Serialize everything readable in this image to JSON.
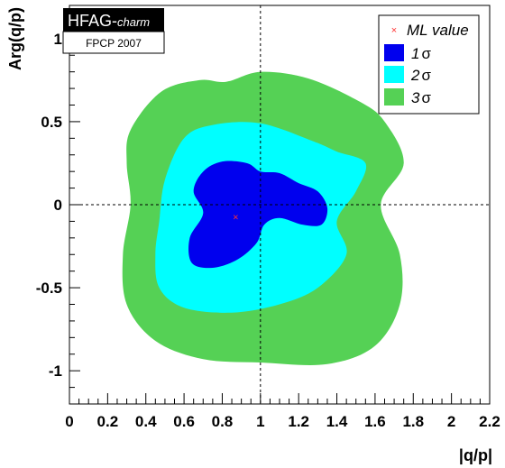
{
  "tag": {
    "main": "HFAG-",
    "main_italic": "charm",
    "sub": "FPCP 2007"
  },
  "legend": {
    "ml": "ML value",
    "s1_num": "1",
    "s2_num": "2",
    "s3_num": "3",
    "sigma": "σ"
  },
  "colors": {
    "one_sigma": "#0000ee",
    "two_sigma": "#00ffff",
    "three_sigma": "#55d155",
    "ml_marker": "#ff3333"
  },
  "chart_data": {
    "type": "contour",
    "xlabel": "|q/p|",
    "ylabel": "Arg(q/p)",
    "xlim": [
      0,
      2.2
    ],
    "ylim": [
      -1.2,
      1.2
    ],
    "x_ticks": [
      "0",
      "0.2",
      "0.4",
      "0.6",
      "0.8",
      "1",
      "1.2",
      "1.4",
      "1.6",
      "1.8",
      "2",
      "2.2"
    ],
    "y_ticks": [
      "-1",
      "-0.5",
      "0",
      "0.5",
      "1"
    ],
    "reference_lines": {
      "x": 1.0,
      "y": 0.0
    },
    "ml_value": {
      "x": 0.87,
      "y": -0.08
    },
    "contours": [
      {
        "name": "3σ",
        "points": [
          [
            0.32,
            0.45
          ],
          [
            0.48,
            0.68
          ],
          [
            0.68,
            0.75
          ],
          [
            0.82,
            0.74
          ],
          [
            1.0,
            0.8
          ],
          [
            1.25,
            0.76
          ],
          [
            1.52,
            0.62
          ],
          [
            1.65,
            0.5
          ],
          [
            1.75,
            0.25
          ],
          [
            1.63,
            0.0
          ],
          [
            1.73,
            -0.3
          ],
          [
            1.73,
            -0.6
          ],
          [
            1.6,
            -0.85
          ],
          [
            1.35,
            -0.96
          ],
          [
            1.0,
            -0.95
          ],
          [
            0.7,
            -0.93
          ],
          [
            0.45,
            -0.82
          ],
          [
            0.3,
            -0.6
          ],
          [
            0.28,
            -0.3
          ],
          [
            0.32,
            0.0
          ],
          [
            0.3,
            0.25
          ]
        ]
      },
      {
        "name": "2σ",
        "points": [
          [
            0.5,
            0.15
          ],
          [
            0.6,
            0.4
          ],
          [
            0.75,
            0.48
          ],
          [
            1.0,
            0.49
          ],
          [
            1.28,
            0.38
          ],
          [
            1.4,
            0.32
          ],
          [
            1.55,
            0.25
          ],
          [
            1.5,
            0.08
          ],
          [
            1.4,
            -0.1
          ],
          [
            1.45,
            -0.3
          ],
          [
            1.3,
            -0.5
          ],
          [
            1.1,
            -0.6
          ],
          [
            0.85,
            -0.65
          ],
          [
            0.6,
            -0.62
          ],
          [
            0.47,
            -0.5
          ],
          [
            0.45,
            -0.3
          ],
          [
            0.47,
            -0.1
          ]
        ]
      },
      {
        "name": "1σ",
        "points": [
          [
            0.7,
            0.2
          ],
          [
            0.8,
            0.26
          ],
          [
            0.93,
            0.25
          ],
          [
            1.0,
            0.2
          ],
          [
            1.1,
            0.19
          ],
          [
            1.2,
            0.13
          ],
          [
            1.3,
            0.08
          ],
          [
            1.35,
            -0.02
          ],
          [
            1.32,
            -0.12
          ],
          [
            1.22,
            -0.12
          ],
          [
            1.1,
            -0.08
          ],
          [
            1.02,
            -0.12
          ],
          [
            0.98,
            -0.23
          ],
          [
            0.88,
            -0.33
          ],
          [
            0.75,
            -0.38
          ],
          [
            0.64,
            -0.35
          ],
          [
            0.63,
            -0.2
          ],
          [
            0.7,
            -0.05
          ],
          [
            0.65,
            0.08
          ]
        ]
      }
    ]
  }
}
